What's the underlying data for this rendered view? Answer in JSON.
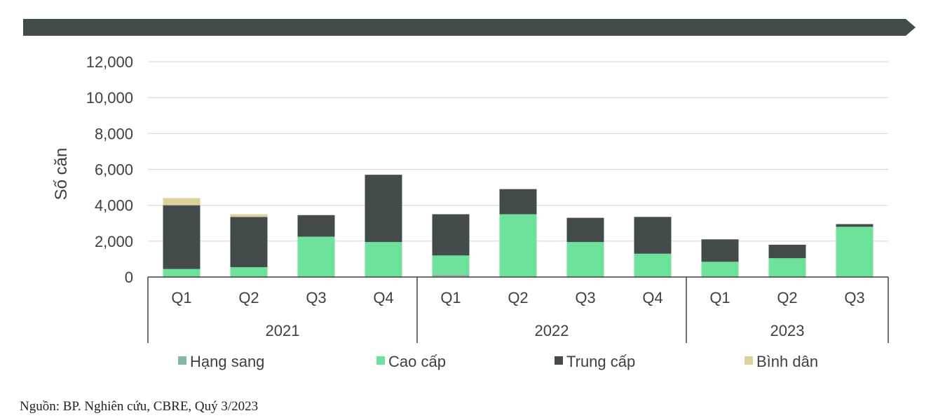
{
  "chart_data": {
    "type": "bar",
    "stacked": true,
    "title": "",
    "ylabel": "Số căn",
    "xlabel": "",
    "ylim": [
      0,
      12000
    ],
    "yticks": [
      "0",
      "2,000",
      "4,000",
      "6,000",
      "8,000",
      "10,000",
      "12,000"
    ],
    "ytick_values": [
      0,
      2000,
      4000,
      6000,
      8000,
      10000,
      12000
    ],
    "groups": [
      {
        "label": "2021",
        "categories": [
          "Q1",
          "Q2",
          "Q3",
          "Q4"
        ]
      },
      {
        "label": "2022",
        "categories": [
          "Q1",
          "Q2",
          "Q3",
          "Q4"
        ]
      },
      {
        "label": "2023",
        "categories": [
          "Q1",
          "Q2",
          "Q3"
        ]
      }
    ],
    "categories": [
      "Q1",
      "Q2",
      "Q3",
      "Q4",
      "Q1",
      "Q2",
      "Q3",
      "Q4",
      "Q1",
      "Q2",
      "Q3"
    ],
    "series": [
      {
        "name": "Hạng sang",
        "color": "#86b9a4",
        "values": [
          0,
          0,
          0,
          0,
          150,
          0,
          0,
          0,
          0,
          0,
          0
        ]
      },
      {
        "name": "Cao cấp",
        "color": "#6ee29a",
        "values": [
          450,
          550,
          2250,
          1950,
          1050,
          3500,
          1950,
          1300,
          850,
          1050,
          2800
        ]
      },
      {
        "name": "Trung cấp",
        "color": "#434b4b",
        "values": [
          3550,
          2800,
          1200,
          3750,
          2300,
          1400,
          1350,
          2050,
          1250,
          750,
          150
        ]
      },
      {
        "name": "Bình dân",
        "color": "#dbd29b",
        "values": [
          400,
          150,
          0,
          0,
          0,
          0,
          0,
          0,
          0,
          0,
          0
        ]
      }
    ],
    "grid": true,
    "legend_position": "bottom"
  },
  "source_note": "Nguồn: BP. Nghiên cứu, CBRE, Quý 3/2023",
  "colors": {
    "banner": "#434b4b",
    "grid": "#d9d9d9",
    "axis": "#404040"
  }
}
